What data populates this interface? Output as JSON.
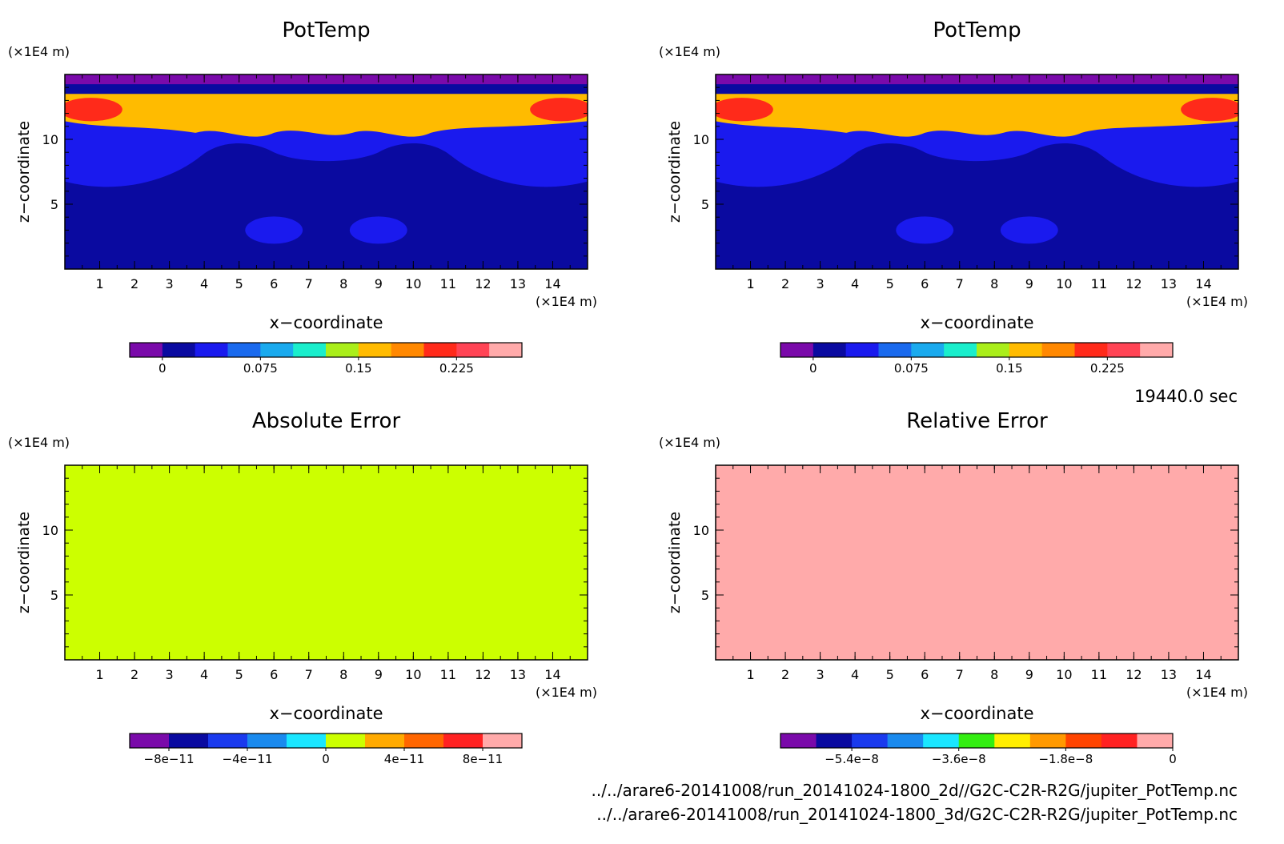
{
  "time_label": "19440.0 sec",
  "files": [
    "../../arare6-20141008/run_20141024-1800_2d//G2C-C2R-R2G/jupiter_PotTemp.nc",
    "../../arare6-20141008/run_20141024-1800_3d/G2C-C2R-R2G/jupiter_PotTemp.nc"
  ],
  "chart_data": [
    {
      "type": "heatmap",
      "title": "PotTemp",
      "xlabel": "x−coordinate",
      "ylabel": "z−coordinate",
      "x_unit": "(×1E4 m)",
      "y_unit": "(×1E4 m)",
      "xlim": [
        0,
        15
      ],
      "ylim": [
        0,
        15
      ],
      "x_ticks": [
        "1",
        "2",
        "3",
        "4",
        "5",
        "6",
        "7",
        "8",
        "9",
        "10",
        "11",
        "12",
        "13",
        "14"
      ],
      "y_ticks": [
        "5",
        "10"
      ],
      "colorbar": {
        "colors": [
          "#7a0aaa",
          "#0a0aa0",
          "#1a1aee",
          "#1a6aee",
          "#1aaaee",
          "#1aeecc",
          "#aaee1a",
          "#ffbb00",
          "#ff8800",
          "#ff2a1a",
          "#ff4455",
          "#ffaaaa"
        ],
        "tick_labels": [
          "0",
          "0.075",
          "0.15",
          "0.225"
        ],
        "range": [
          -0.025,
          0.275
        ]
      },
      "features": {
        "background": "#0a0aa0",
        "middle_band": "#1a1aee",
        "lower_blobs": "#1a1aee",
        "upper_band": "#ffbb00",
        "hot_spots": "#ff2a1a",
        "top_edge": "#7a0aaa"
      }
    },
    {
      "type": "heatmap",
      "title": "PotTemp",
      "xlabel": "x−coordinate",
      "ylabel": "z−coordinate",
      "x_unit": "(×1E4 m)",
      "y_unit": "(×1E4 m)",
      "xlim": [
        0,
        15
      ],
      "ylim": [
        0,
        15
      ],
      "x_ticks": [
        "1",
        "2",
        "3",
        "4",
        "5",
        "6",
        "7",
        "8",
        "9",
        "10",
        "11",
        "12",
        "13",
        "14"
      ],
      "y_ticks": [
        "5",
        "10"
      ],
      "colorbar": {
        "colors": [
          "#7a0aaa",
          "#0a0aa0",
          "#1a1aee",
          "#1a6aee",
          "#1aaaee",
          "#1aeecc",
          "#aaee1a",
          "#ffbb00",
          "#ff8800",
          "#ff2a1a",
          "#ff4455",
          "#ffaaaa"
        ],
        "tick_labels": [
          "0",
          "0.075",
          "0.15",
          "0.225"
        ],
        "range": [
          -0.025,
          0.275
        ]
      },
      "features": {
        "background": "#0a0aa0",
        "middle_band": "#1a1aee",
        "lower_blobs": "#1a1aee",
        "upper_band": "#ffbb00",
        "hot_spots": "#ff2a1a",
        "top_edge": "#7a0aaa"
      }
    },
    {
      "type": "heatmap",
      "title": "Absolute Error",
      "xlabel": "x−coordinate",
      "ylabel": "z−coordinate",
      "x_unit": "(×1E4 m)",
      "y_unit": "(×1E4 m)",
      "xlim": [
        0,
        15
      ],
      "ylim": [
        0,
        15
      ],
      "x_ticks": [
        "1",
        "2",
        "3",
        "4",
        "5",
        "6",
        "7",
        "8",
        "9",
        "10",
        "11",
        "12",
        "13",
        "14"
      ],
      "y_ticks": [
        "5",
        "10"
      ],
      "fill_color": "#ccff00",
      "colorbar": {
        "colors": [
          "#7a0aaa",
          "#0a0aa0",
          "#1a3aee",
          "#1a8aee",
          "#1ae6ff",
          "#ccff00",
          "#ffaa00",
          "#ff6600",
          "#ff2222",
          "#ffaaaa"
        ],
        "tick_labels": [
          "−8e−11",
          "−4e−11",
          "0",
          "4e−11",
          "8e−11"
        ],
        "range": [
          -1e-10,
          1e-10
        ]
      }
    },
    {
      "type": "heatmap",
      "title": "Relative Error",
      "xlabel": "x−coordinate",
      "ylabel": "z−coordinate",
      "x_unit": "(×1E4 m)",
      "y_unit": "(×1E4 m)",
      "xlim": [
        0,
        15
      ],
      "ylim": [
        0,
        15
      ],
      "x_ticks": [
        "1",
        "2",
        "3",
        "4",
        "5",
        "6",
        "7",
        "8",
        "9",
        "10",
        "11",
        "12",
        "13",
        "14"
      ],
      "y_ticks": [
        "5",
        "10"
      ],
      "fill_color": "#ffaaaa",
      "colorbar": {
        "colors": [
          "#7a0aaa",
          "#0a0aa0",
          "#1a3aee",
          "#1a8aee",
          "#1ae6ff",
          "#33ee11",
          "#ffee00",
          "#ff9900",
          "#ff4400",
          "#ff2222",
          "#ffaaaa"
        ],
        "tick_labels": [
          "−5.4e−8",
          "−3.6e−8",
          "−1.8e−8",
          "0"
        ],
        "range": [
          -6.6e-08,
          0
        ]
      }
    }
  ]
}
